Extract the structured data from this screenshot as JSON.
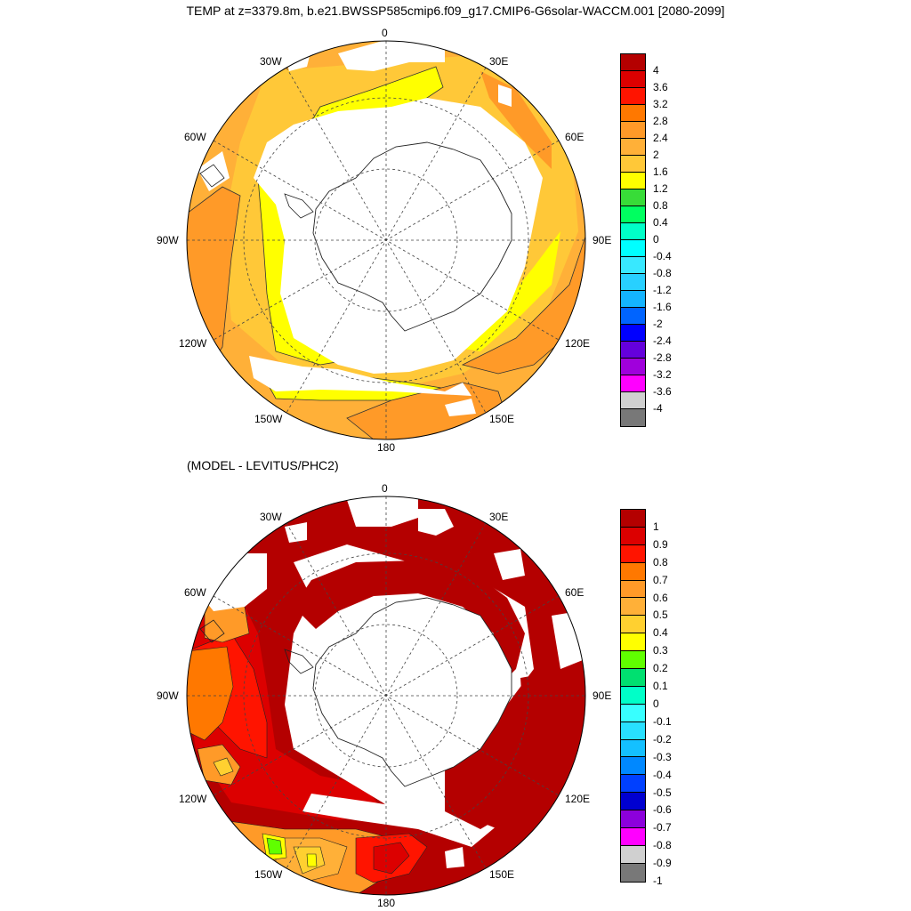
{
  "title": "TEMP at z=3379.8m, b.e21.BWSSP585cmip6.f09_g17.CMIP6-G6solar-WACCM.001 [2080-2099]",
  "subtitle": "(MODEL - LEVITUS/PHC2)",
  "lon_labels": {
    "deg0": "0",
    "deg30e": "30E",
    "deg60e": "60E",
    "deg90e": "90E",
    "deg120e": "120E",
    "deg150e": "150E",
    "deg180": "180",
    "deg150w": "150W",
    "deg120w": "120W",
    "deg90w": "90W",
    "deg60w": "60W",
    "deg30w": "30W"
  },
  "colorbar_top": {
    "labels": [
      "4",
      "3.6",
      "3.2",
      "2.8",
      "2.4",
      "2",
      "1.6",
      "1.2",
      "0.8",
      "0.4",
      "0",
      "-0.4",
      "-0.8",
      "-1.2",
      "-1.6",
      "-2",
      "-2.4",
      "-2.8",
      "-3.2",
      "-3.6",
      "-4"
    ],
    "colors": [
      "#b40000",
      "#dc0000",
      "#ff1400",
      "#ff7800",
      "#ff9a28",
      "#ffb038",
      "#ffc838",
      "#ffff00",
      "#38dc38",
      "#00ff60",
      "#00ffc8",
      "#00ffff",
      "#38e8ff",
      "#28d0ff",
      "#14b4ff",
      "#0064ff",
      "#0000ff",
      "#6400dc",
      "#a000dc",
      "#ff00ff",
      "#d0d0d0",
      "#787878"
    ]
  },
  "colorbar_bottom": {
    "labels": [
      "1",
      "0.9",
      "0.8",
      "0.7",
      "0.6",
      "0.5",
      "0.4",
      "0.3",
      "0.2",
      "0.1",
      "0",
      "-0.1",
      "-0.2",
      "-0.3",
      "-0.4",
      "-0.5",
      "-0.6",
      "-0.7",
      "-0.8",
      "-0.9",
      "-1"
    ],
    "colors": [
      "#b40000",
      "#dc0000",
      "#ff1400",
      "#ff7800",
      "#ff9a28",
      "#ffb038",
      "#ffd030",
      "#ffff00",
      "#60ff00",
      "#00e070",
      "#00ffc8",
      "#38ffff",
      "#28e0ff",
      "#14c0ff",
      "#0088ff",
      "#0040ff",
      "#0000d0",
      "#8c00dc",
      "#ff00ff",
      "#d0d0d0",
      "#787878"
    ]
  }
}
